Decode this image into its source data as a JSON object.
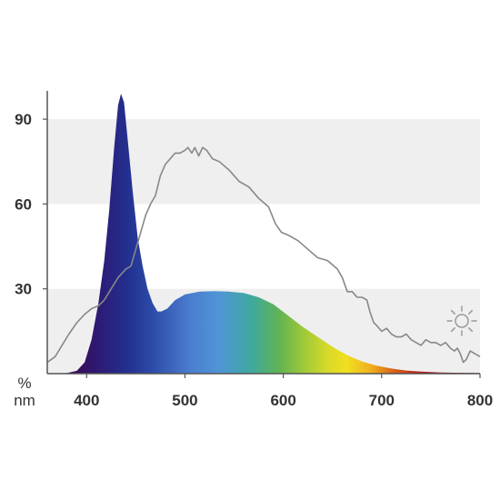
{
  "chart_data": {
    "type": "area",
    "y_unit": "%",
    "x_unit": "nm",
    "xlim": [
      360,
      800
    ],
    "ylim": [
      0,
      100
    ],
    "x_ticks": [
      400,
      500,
      600,
      700,
      800
    ],
    "y_ticks": [
      30,
      60,
      90
    ],
    "grid": "alternating horizontal bands",
    "series": [
      {
        "style": "filled spectral gradient",
        "points": [
          [
            360,
            0
          ],
          [
            380,
            0.2
          ],
          [
            390,
            1
          ],
          [
            398,
            4
          ],
          [
            405,
            12
          ],
          [
            412,
            25
          ],
          [
            418,
            40
          ],
          [
            423,
            58
          ],
          [
            428,
            80
          ],
          [
            432,
            95
          ],
          [
            435,
            99
          ],
          [
            438,
            96
          ],
          [
            442,
            82
          ],
          [
            447,
            64
          ],
          [
            452,
            48
          ],
          [
            457,
            38
          ],
          [
            462,
            30
          ],
          [
            467,
            25
          ],
          [
            472,
            22
          ],
          [
            476,
            22
          ],
          [
            482,
            23
          ],
          [
            490,
            26
          ],
          [
            500,
            28
          ],
          [
            515,
            29
          ],
          [
            530,
            29.2
          ],
          [
            545,
            29
          ],
          [
            560,
            28.5
          ],
          [
            575,
            27
          ],
          [
            590,
            24.5
          ],
          [
            605,
            20.5
          ],
          [
            620,
            16.5
          ],
          [
            635,
            13
          ],
          [
            650,
            9.5
          ],
          [
            665,
            6.5
          ],
          [
            680,
            4.3
          ],
          [
            695,
            2.8
          ],
          [
            710,
            1.8
          ],
          [
            725,
            1.1
          ],
          [
            740,
            0.7
          ],
          [
            760,
            0.4
          ],
          [
            780,
            0.3
          ],
          [
            800,
            0.2
          ]
        ]
      },
      {
        "style": "grey line",
        "points": [
          [
            360,
            4
          ],
          [
            368,
            6
          ],
          [
            375,
            10
          ],
          [
            382,
            14
          ],
          [
            390,
            18
          ],
          [
            398,
            21
          ],
          [
            405,
            23
          ],
          [
            412,
            24
          ],
          [
            418,
            26
          ],
          [
            425,
            30
          ],
          [
            432,
            34
          ],
          [
            440,
            37
          ],
          [
            445,
            38
          ],
          [
            450,
            44
          ],
          [
            455,
            50
          ],
          [
            460,
            56
          ],
          [
            465,
            60
          ],
          [
            470,
            63
          ],
          [
            475,
            70
          ],
          [
            480,
            74
          ],
          [
            485,
            76
          ],
          [
            490,
            78
          ],
          [
            495,
            78
          ],
          [
            500,
            79
          ],
          [
            503,
            80
          ],
          [
            507,
            78
          ],
          [
            510,
            80
          ],
          [
            514,
            77
          ],
          [
            518,
            80
          ],
          [
            522,
            79
          ],
          [
            528,
            76
          ],
          [
            535,
            75
          ],
          [
            545,
            72
          ],
          [
            555,
            68
          ],
          [
            565,
            66
          ],
          [
            575,
            62
          ],
          [
            585,
            59
          ],
          [
            592,
            53
          ],
          [
            598,
            50
          ],
          [
            605,
            49
          ],
          [
            615,
            47
          ],
          [
            625,
            44
          ],
          [
            635,
            41
          ],
          [
            645,
            40
          ],
          [
            655,
            37
          ],
          [
            660,
            34
          ],
          [
            665,
            29
          ],
          [
            670,
            29
          ],
          [
            675,
            27
          ],
          [
            680,
            27
          ],
          [
            685,
            26
          ],
          [
            688,
            22
          ],
          [
            692,
            18
          ],
          [
            695,
            17
          ],
          [
            700,
            15
          ],
          [
            705,
            16
          ],
          [
            710,
            14
          ],
          [
            715,
            13
          ],
          [
            720,
            13
          ],
          [
            725,
            14
          ],
          [
            730,
            12
          ],
          [
            735,
            11
          ],
          [
            740,
            10
          ],
          [
            745,
            12
          ],
          [
            750,
            11
          ],
          [
            755,
            11
          ],
          [
            760,
            10
          ],
          [
            765,
            11
          ],
          [
            770,
            9
          ],
          [
            774,
            8
          ],
          [
            777,
            9
          ],
          [
            780,
            7
          ],
          [
            783,
            4
          ],
          [
            786,
            5
          ],
          [
            790,
            8
          ],
          [
            795,
            7
          ],
          [
            800,
            6
          ]
        ]
      }
    ],
    "icon": "sun-icon",
    "colors": {
      "band": "#efefef",
      "axis": "#555555",
      "grey_line": "#888888",
      "spectrum": [
        "#3a0a52",
        "#2b1e7a",
        "#23308f",
        "#2c4aa8",
        "#4b7fd0",
        "#4f95d6",
        "#3fa8a0",
        "#60b454",
        "#9cc83a",
        "#d6d92a",
        "#f0e020",
        "#f0b01e",
        "#d8601a",
        "#b01818",
        "#800a0a"
      ]
    }
  }
}
